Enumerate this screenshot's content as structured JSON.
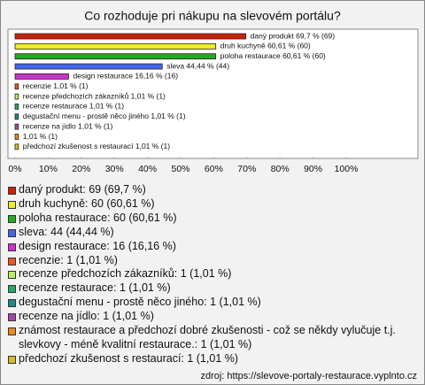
{
  "chart_data": {
    "type": "bar",
    "orientation": "horizontal",
    "title": "Co rozhoduje pri nákupu na slevovém portálu?",
    "categories": [
      "daný produkt: 69 (69,7 %)",
      "druh kuchyně: 60 (60,61 %)",
      "poloha restaurace: 60 (60,61 %)",
      "sleva: 44 (44,44 %)",
      "design restaurace: 16 (16,16 %)",
      "recenzie: 1 (1,01 %)",
      "recenze předchozích zákazníků: 1 (1,01 %)",
      "recenze restaurace: 1 (1,01 %)",
      "degustační menu - prostě něco jiného: 1 (1,01 %)",
      "recenze na jídlo: 1 (1,01 %)",
      "známost restaurace a předchozí dobré zkušenosti - což se někdy vylučuje t.j. slevkovy - méně kvalitní restaurace.: 1 (1,01 %)",
      "předchozí zkušenost s restaurací: 1 (1,01 %)"
    ],
    "values": [
      69.7,
      60.61,
      60.61,
      44.44,
      16.16,
      1.01,
      1.01,
      1.01,
      1.01,
      1.01,
      1.01,
      1.01
    ],
    "value_labels": [
      "daný produkt 69,7 % (69)",
      "druh kuchyně 60,61 % (60)",
      "poloha restaurace 60,61 % (60)",
      "sleva 44,44 % (44)",
      "design restaurace 16,16 % (16)",
      "recenzie 1,01 % (1)",
      "recenze předchozích zákazníků 1,01 % (1)",
      "recenze restaurace 1,01 % (1)",
      "degustační menu - prostě něco jiného 1,01 % (1)",
      "recenze na jídlo 1,01 % (1)",
      "1,01 % (1)",
      "předchozí zkušenost s restaurací 1,01 % (1)"
    ],
    "colors": [
      "#cc2200",
      "#eeee22",
      "#22aa22",
      "#4466ee",
      "#cc33cc",
      "#ee5522",
      "#bbee66",
      "#22aa66",
      "#228888",
      "#aa44aa",
      "#ee8822",
      "#ddbb22"
    ],
    "xlim": [
      0,
      100
    ],
    "xticks": [
      {
        "value": 0,
        "label": "0%"
      },
      {
        "value": 10,
        "label": "10%"
      },
      {
        "value": 20,
        "label": "20%"
      },
      {
        "value": 30,
        "label": "30%"
      },
      {
        "value": 40,
        "label": "40%"
      },
      {
        "value": 50,
        "label": "50%"
      },
      {
        "value": 60,
        "label": "60%"
      },
      {
        "value": 70,
        "label": "70%"
      },
      {
        "value": 80,
        "label": "80%"
      },
      {
        "value": 90,
        "label": "90%"
      },
      {
        "value": 100,
        "label": "100%"
      }
    ],
    "grid": false,
    "source": "zdroj: https://slevove-portaly-restaurace.vyplnto.cz"
  }
}
